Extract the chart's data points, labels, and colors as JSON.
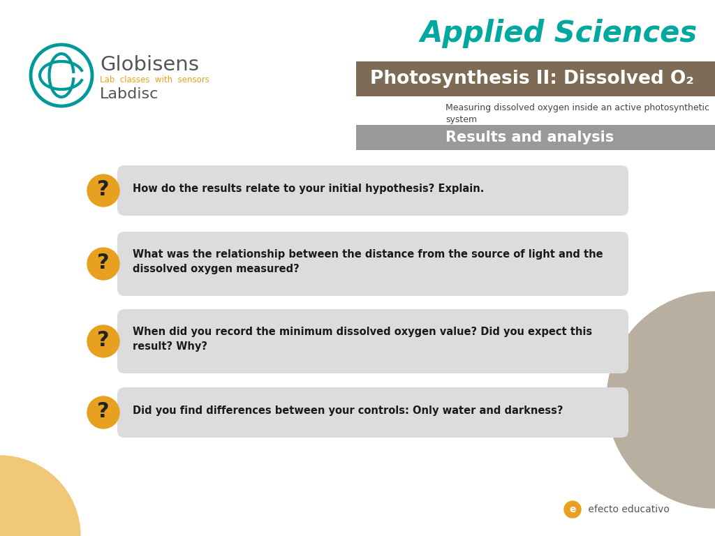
{
  "bg_color": "#ffffff",
  "title_applied": "Applied Sciences",
  "title_applied_color": "#00A89D",
  "title_bar_color": "#7D6B55",
  "title_bar_text": "Photosynthesis II: Dissolved O₂",
  "title_bar_text_color": "#ffffff",
  "subtitle_text": "Measuring dissolved oxygen inside an active photosynthetic\nsystem",
  "subtitle_color": "#444444",
  "section_bar_color": "#999999",
  "section_bar_text": "Results and analysis",
  "section_bar_text_color": "#ffffff",
  "question_box_color": "#DCDCDC",
  "question_mark_bg": "#E8A020",
  "question_mark_color": "#222222",
  "questions": [
    "How do the results relate to your initial hypothesis? Explain.",
    "What was the relationship between the distance from the source of light and the\ndissolved oxygen measured?",
    "When did you record the minimum dissolved oxygen value? Did you expect this\nresult? Why?",
    "Did you find differences between your controls: Only water and darkness?"
  ],
  "globisens_color": "#009999",
  "globisens_text_color": "#555555",
  "lab_classes_color": "#E8A020",
  "labdisc_color": "#555555",
  "efecto_color": "#E8A020",
  "bottom_circle_color": "#F0C878",
  "right_circle_color": "#B8AFA0"
}
